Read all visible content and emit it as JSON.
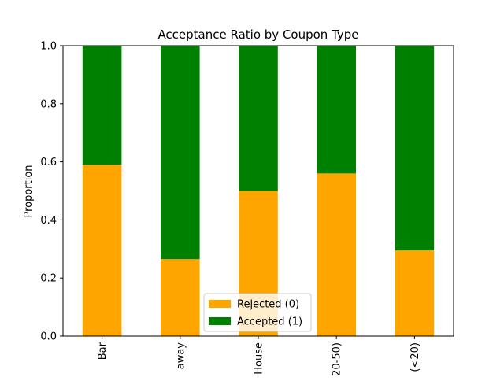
{
  "chart_data": {
    "type": "bar",
    "stacked": true,
    "title": "Acceptance Ratio by Coupon Type",
    "xlabel": "",
    "ylabel": "Proportion",
    "ylim": [
      0,
      1.0
    ],
    "yticks": [
      "0.0",
      "0.2",
      "0.4",
      "0.6",
      "0.8",
      "1.0"
    ],
    "categories": [
      "Bar",
      "away",
      "House",
      "20-50)",
      "(<20)"
    ],
    "series": [
      {
        "name": "Rejected (0)",
        "color": "#ffa500",
        "values": [
          0.59,
          0.265,
          0.5,
          0.56,
          0.295
        ]
      },
      {
        "name": "Accepted (1)",
        "color": "#008000",
        "values": [
          0.41,
          0.735,
          0.5,
          0.44,
          0.705
        ]
      }
    ],
    "legend_position": "lower-center",
    "grid": false
  }
}
